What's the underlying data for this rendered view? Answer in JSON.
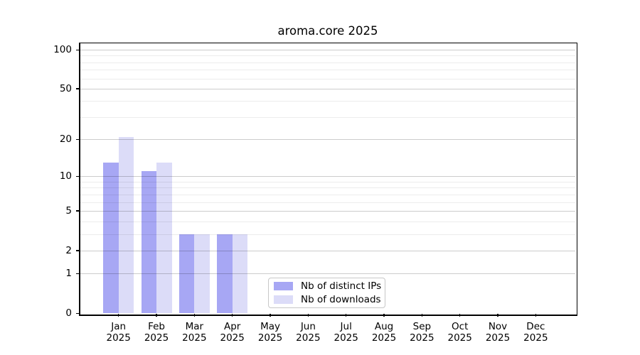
{
  "chart_data": {
    "type": "bar",
    "title": "aroma.core 2025",
    "categories": [
      "Jan",
      "Feb",
      "Mar",
      "Apr",
      "May",
      "Jun",
      "Jul",
      "Aug",
      "Sep",
      "Oct",
      "Nov",
      "Dec"
    ],
    "year_label": "2025",
    "series": [
      {
        "name": "Nb of distinct IPs",
        "color": "#a7a7f4",
        "values": [
          13,
          11,
          3,
          3,
          0,
          0,
          0,
          0,
          0,
          0,
          0,
          0
        ]
      },
      {
        "name": "Nb of downloads",
        "color": "#dcdcf8",
        "values": [
          21,
          13,
          3,
          3,
          0,
          0,
          0,
          0,
          0,
          0,
          0,
          0
        ]
      }
    ],
    "y_scale": "log1p",
    "ylim": [
      0,
      100
    ],
    "y_ticks": [
      0,
      1,
      2,
      5,
      10,
      20,
      50,
      100
    ],
    "y_minor_gridlines": [
      3,
      4,
      6,
      7,
      8,
      9,
      30,
      40,
      60,
      70,
      80,
      90
    ],
    "grid": true,
    "legend": {
      "position": "inside-bottom-center",
      "entries": [
        "Nb of distinct IPs",
        "Nb of downloads"
      ]
    },
    "colors": {
      "background": "#ffffff",
      "axis": "#000000",
      "major_grid": "#cccccc",
      "minor_grid": "#ececec",
      "bar_distinct_ips": "#a7a7f4",
      "bar_downloads": "#dcdcf8"
    }
  }
}
